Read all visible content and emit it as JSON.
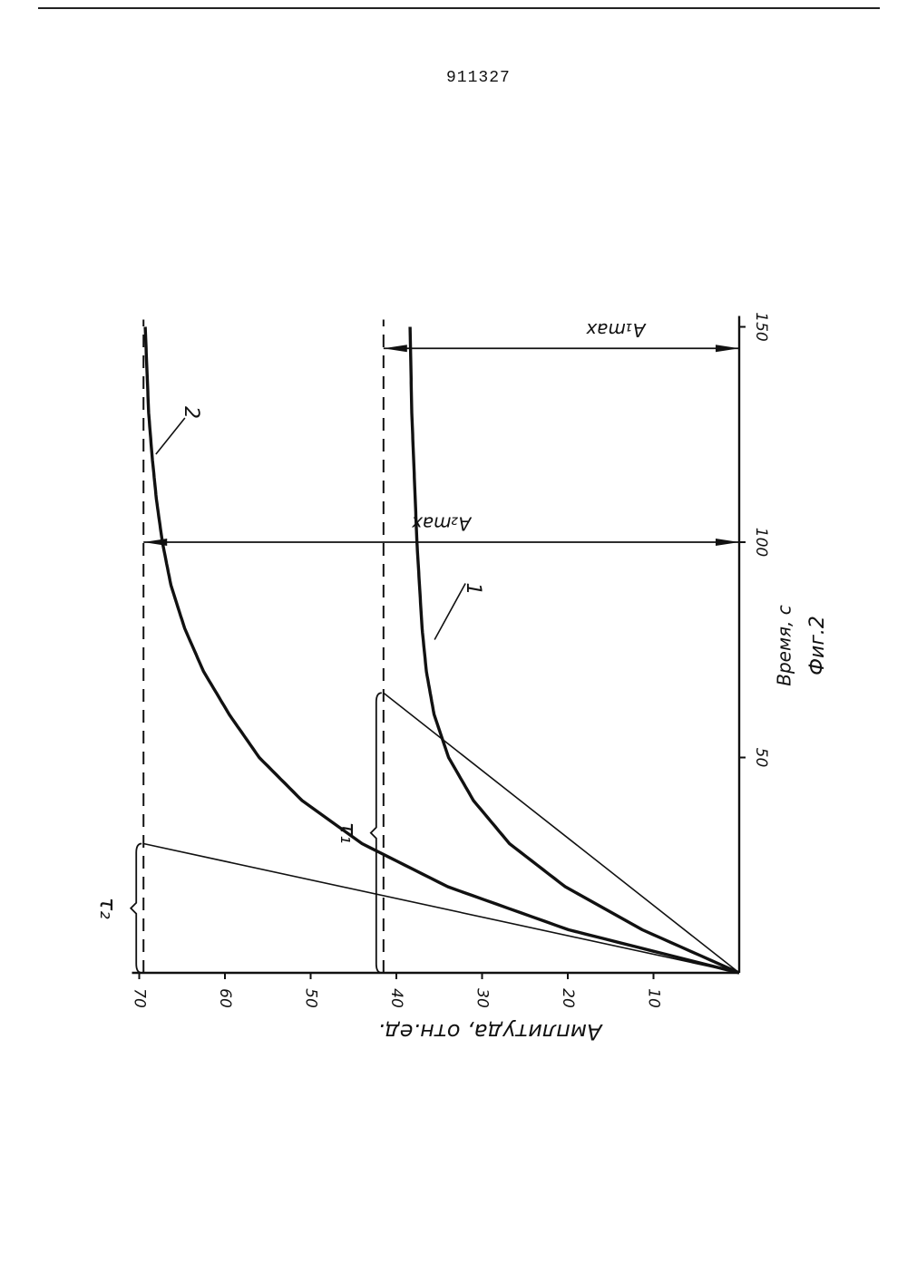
{
  "document": {
    "number": "911327"
  },
  "chart_data": {
    "type": "line",
    "orientation": "rotated-90",
    "xlabel": "Время, с",
    "ylabel": "Амплитуда, отн.ед.",
    "caption": "Фиг.2",
    "xlim": [
      0,
      150
    ],
    "ylim": [
      0,
      70
    ],
    "x_ticks": [
      {
        "value": 50,
        "label": "50"
      },
      {
        "value": 100,
        "label": "100"
      },
      {
        "value": 150,
        "label": "150"
      }
    ],
    "y_ticks": [
      {
        "value": 10,
        "label": "10"
      },
      {
        "value": 20,
        "label": "20"
      },
      {
        "value": 30,
        "label": "30"
      },
      {
        "value": 40,
        "label": "40"
      },
      {
        "value": 50,
        "label": "50"
      },
      {
        "value": 60,
        "label": "60"
      },
      {
        "value": 70,
        "label": "70"
      }
    ],
    "series": [
      {
        "name": "1",
        "amax": 41.5,
        "tau": 65,
        "points": [
          [
            0,
            0
          ],
          [
            10,
            11.3
          ],
          [
            20,
            20.3
          ],
          [
            30,
            26.8
          ],
          [
            40,
            31.0
          ],
          [
            50,
            33.9
          ],
          [
            60,
            35.6
          ],
          [
            70,
            36.5
          ],
          [
            80,
            37.0
          ],
          [
            90,
            37.3
          ],
          [
            100,
            37.6
          ],
          [
            110,
            37.8
          ],
          [
            120,
            38.0
          ],
          [
            130,
            38.2
          ],
          [
            140,
            38.3
          ],
          [
            150,
            38.4
          ]
        ]
      },
      {
        "name": "2",
        "amax": 69.5,
        "tau": 30,
        "points": [
          [
            0,
            0
          ],
          [
            10,
            19.9
          ],
          [
            20,
            34.0
          ],
          [
            30,
            44.0
          ],
          [
            40,
            51.0
          ],
          [
            50,
            56.0
          ],
          [
            60,
            59.5
          ],
          [
            70,
            62.5
          ],
          [
            80,
            64.7
          ],
          [
            90,
            66.3
          ],
          [
            100,
            67.3
          ],
          [
            110,
            68.0
          ],
          [
            120,
            68.5
          ],
          [
            130,
            68.9
          ],
          [
            140,
            69.1
          ],
          [
            150,
            69.3
          ]
        ]
      }
    ],
    "asymptotes": [
      {
        "series": "1",
        "value": 41.5,
        "label": "A₁max"
      },
      {
        "series": "2",
        "value": 69.5,
        "label": "A₂max"
      }
    ],
    "tangents": [
      {
        "series": "1",
        "tau": 65,
        "label": "τ₁"
      },
      {
        "series": "2",
        "tau": 30,
        "label": "τ₂"
      }
    ],
    "max_markers": [
      {
        "series": "1",
        "x": 145,
        "label": "A₁max"
      },
      {
        "series": "2",
        "x": 100,
        "label": "A₂max"
      }
    ]
  }
}
